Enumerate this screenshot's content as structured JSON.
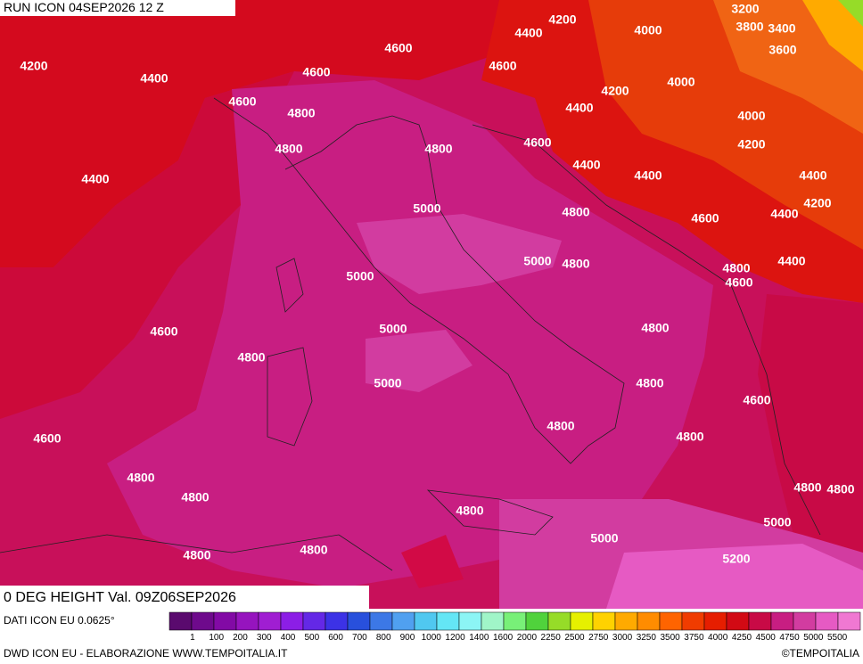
{
  "header": {
    "run": "RUN ICON 04SEP2026 12 Z",
    "field": "0 DEG HEIGHT Val. 09Z06SEP2026"
  },
  "contour_labels": [
    "4200",
    "4400",
    "4000",
    "3200",
    "3800",
    "3400",
    "3600",
    "4200",
    "4400",
    "4600",
    "4600",
    "4600",
    "4000",
    "4200",
    "4600",
    "4800",
    "4400",
    "4000",
    "4800",
    "4800",
    "4600",
    "4200",
    "4400",
    "4400",
    "4400",
    "4400",
    "5000",
    "4800",
    "4600",
    "4400",
    "4200",
    "5000",
    "4800",
    "4400",
    "4800",
    "4600",
    "5000",
    "5000",
    "4600",
    "4800",
    "4800",
    "5000",
    "4800",
    "4600",
    "4600",
    "4800",
    "4800",
    "4800",
    "4800",
    "4800",
    "4800",
    "4800",
    "5000",
    "5000",
    "4800",
    "4800",
    "5200"
  ],
  "legend": {
    "source": "DATI ICON EU 0.0625°",
    "labels": [
      "1",
      "100",
      "200",
      "300",
      "400",
      "500",
      "600",
      "700",
      "800",
      "900",
      "1000",
      "1200",
      "1400",
      "1600",
      "2000",
      "2250",
      "2500",
      "2750",
      "3000",
      "3250",
      "3500",
      "3750",
      "4000",
      "4250",
      "4500",
      "4750",
      "5000",
      "5500"
    ],
    "colors": [
      "#5a0a6e",
      "#6e0a8c",
      "#820aa5",
      "#9614be",
      "#a01ed2",
      "#8c1ee6",
      "#6428e6",
      "#3c32e6",
      "#2850dc",
      "#3c78e6",
      "#50a0f0",
      "#50c8f0",
      "#64e6f5",
      "#8cf5f5",
      "#a0f5c8",
      "#78f078",
      "#50d23c",
      "#96dc28",
      "#e6f000",
      "#ffd200",
      "#ffaa00",
      "#ff8c00",
      "#ff6400",
      "#f03c00",
      "#e61e00",
      "#d20a14",
      "#c80a46",
      "#c81e82",
      "#d23ca0",
      "#e65ac3",
      "#f078d2"
    ]
  },
  "footer": {
    "credit": "DWD ICON EU - ELABORAZIONE WWW.TEMPOITALIA.IT",
    "brand": "©TEMPOITALIA"
  }
}
